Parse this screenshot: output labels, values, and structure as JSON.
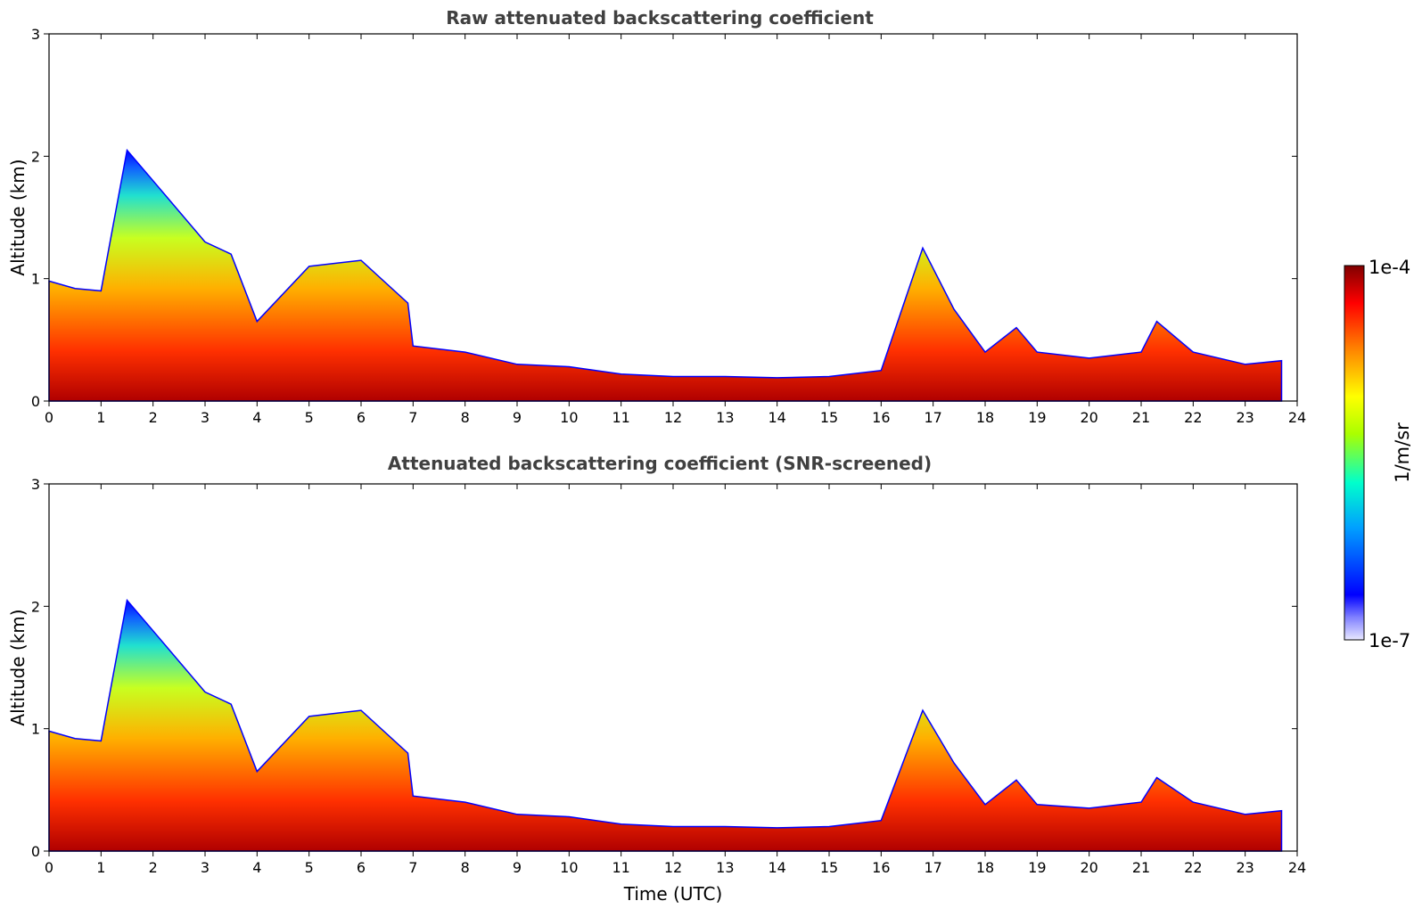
{
  "chart_data": [
    {
      "type": "heatmap",
      "title": "Raw attenuated backscattering coefficient",
      "xlabel": "",
      "ylabel": "Altitude (km)",
      "xlim": [
        0,
        24
      ],
      "ylim": [
        0,
        3
      ],
      "xticks": [
        "0",
        "1",
        "2",
        "3",
        "4",
        "5",
        "6",
        "7",
        "8",
        "9",
        "10",
        "11",
        "12",
        "13",
        "14",
        "15",
        "16",
        "17",
        "18",
        "19",
        "20",
        "21",
        "22",
        "23",
        "24"
      ],
      "yticks": [
        "0",
        "1",
        "2",
        "3"
      ],
      "boundary_layer_top_km": [
        {
          "t": 0.0,
          "h": 0.98
        },
        {
          "t": 0.5,
          "h": 0.92
        },
        {
          "t": 1.0,
          "h": 0.9
        },
        {
          "t": 1.5,
          "h": 2.05
        },
        {
          "t": 2.0,
          "h": 1.8
        },
        {
          "t": 2.5,
          "h": 1.55
        },
        {
          "t": 3.0,
          "h": 1.3
        },
        {
          "t": 3.5,
          "h": 1.2
        },
        {
          "t": 4.0,
          "h": 0.65
        },
        {
          "t": 5.0,
          "h": 1.1
        },
        {
          "t": 6.0,
          "h": 1.15
        },
        {
          "t": 6.9,
          "h": 0.8
        },
        {
          "t": 7.0,
          "h": 0.45
        },
        {
          "t": 8.0,
          "h": 0.4
        },
        {
          "t": 9.0,
          "h": 0.3
        },
        {
          "t": 10.0,
          "h": 0.28
        },
        {
          "t": 11.0,
          "h": 0.22
        },
        {
          "t": 12.0,
          "h": 0.2
        },
        {
          "t": 13.0,
          "h": 0.2
        },
        {
          "t": 14.0,
          "h": 0.19
        },
        {
          "t": 15.0,
          "h": 0.2
        },
        {
          "t": 16.0,
          "h": 0.25
        },
        {
          "t": 16.8,
          "h": 1.25
        },
        {
          "t": 17.4,
          "h": 0.75
        },
        {
          "t": 18.0,
          "h": 0.4
        },
        {
          "t": 18.6,
          "h": 0.6
        },
        {
          "t": 19.0,
          "h": 0.4
        },
        {
          "t": 20.0,
          "h": 0.35
        },
        {
          "t": 21.0,
          "h": 0.4
        },
        {
          "t": 21.3,
          "h": 0.65
        },
        {
          "t": 22.0,
          "h": 0.4
        },
        {
          "t": 23.0,
          "h": 0.3
        },
        {
          "t": 23.7,
          "h": 0.33
        }
      ]
    },
    {
      "type": "heatmap",
      "title": "Attenuated backscattering coefficient (SNR-screened)",
      "xlabel": "Time (UTC)",
      "ylabel": "Altitude (km)",
      "xlim": [
        0,
        24
      ],
      "ylim": [
        0,
        3
      ],
      "xticks": [
        "0",
        "1",
        "2",
        "3",
        "4",
        "5",
        "6",
        "7",
        "8",
        "9",
        "10",
        "11",
        "12",
        "13",
        "14",
        "15",
        "16",
        "17",
        "18",
        "19",
        "20",
        "21",
        "22",
        "23",
        "24"
      ],
      "yticks": [
        "0",
        "1",
        "2",
        "3"
      ],
      "boundary_layer_top_km": [
        {
          "t": 0.0,
          "h": 0.98
        },
        {
          "t": 0.5,
          "h": 0.92
        },
        {
          "t": 1.0,
          "h": 0.9
        },
        {
          "t": 1.5,
          "h": 2.05
        },
        {
          "t": 2.0,
          "h": 1.8
        },
        {
          "t": 2.5,
          "h": 1.55
        },
        {
          "t": 3.0,
          "h": 1.3
        },
        {
          "t": 3.5,
          "h": 1.2
        },
        {
          "t": 4.0,
          "h": 0.65
        },
        {
          "t": 5.0,
          "h": 1.1
        },
        {
          "t": 6.0,
          "h": 1.15
        },
        {
          "t": 6.9,
          "h": 0.8
        },
        {
          "t": 7.0,
          "h": 0.45
        },
        {
          "t": 8.0,
          "h": 0.4
        },
        {
          "t": 9.0,
          "h": 0.3
        },
        {
          "t": 10.0,
          "h": 0.28
        },
        {
          "t": 11.0,
          "h": 0.22
        },
        {
          "t": 12.0,
          "h": 0.2
        },
        {
          "t": 13.0,
          "h": 0.2
        },
        {
          "t": 14.0,
          "h": 0.19
        },
        {
          "t": 15.0,
          "h": 0.2
        },
        {
          "t": 16.0,
          "h": 0.25
        },
        {
          "t": 16.8,
          "h": 1.15
        },
        {
          "t": 17.4,
          "h": 0.72
        },
        {
          "t": 18.0,
          "h": 0.38
        },
        {
          "t": 18.6,
          "h": 0.58
        },
        {
          "t": 19.0,
          "h": 0.38
        },
        {
          "t": 20.0,
          "h": 0.35
        },
        {
          "t": 21.0,
          "h": 0.4
        },
        {
          "t": 21.3,
          "h": 0.6
        },
        {
          "t": 22.0,
          "h": 0.4
        },
        {
          "t": 23.0,
          "h": 0.3
        },
        {
          "t": 23.7,
          "h": 0.33
        }
      ]
    }
  ],
  "colorbar": {
    "label": "1/m/sr",
    "min_label": "1e-7",
    "max_label": "1e-4",
    "colormap": [
      "#e8e8ff",
      "#0000ff",
      "#00aaff",
      "#00ffcc",
      "#aaff00",
      "#ffff00",
      "#ff8800",
      "#ff0000",
      "#800000"
    ]
  }
}
